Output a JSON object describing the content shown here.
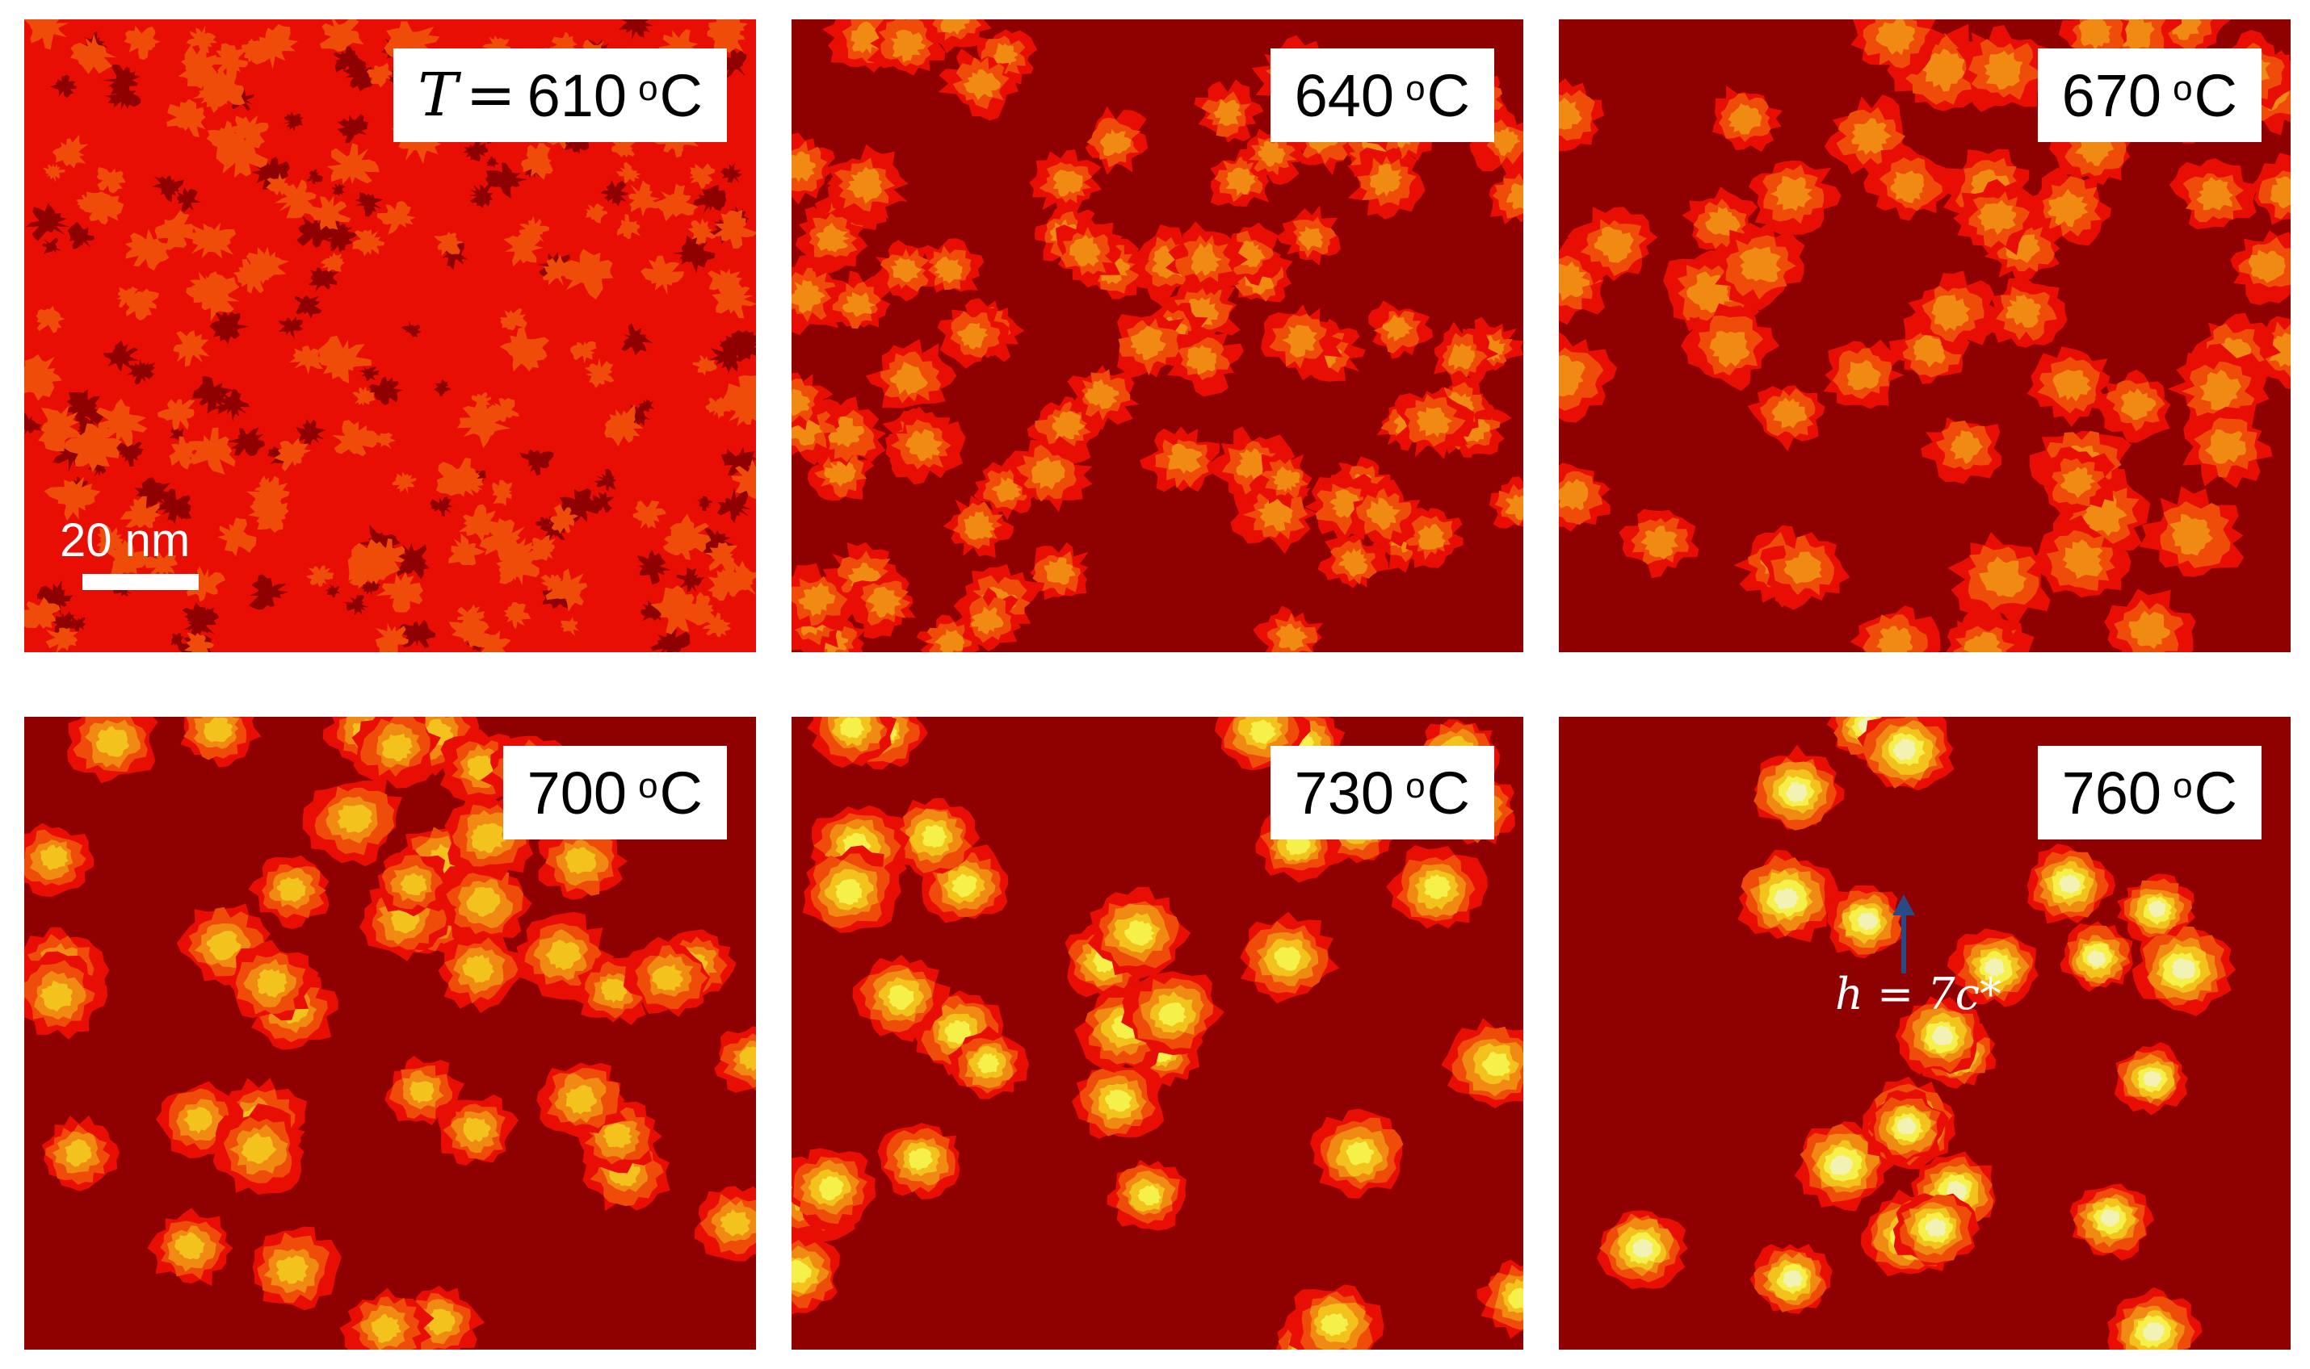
{
  "figure": {
    "panels": [
      {
        "id": "p1",
        "temperature": "610",
        "unit": "oC",
        "prefix_var": "T",
        "prefix_eq": "=",
        "stage": 1
      },
      {
        "id": "p2",
        "temperature": "640",
        "unit": "oC",
        "stage": 2
      },
      {
        "id": "p3",
        "temperature": "670",
        "unit": "oC",
        "stage": 3
      },
      {
        "id": "p4",
        "temperature": "700",
        "unit": "oC",
        "stage": 4
      },
      {
        "id": "p5",
        "temperature": "730",
        "unit": "oC",
        "stage": 5
      },
      {
        "id": "p6",
        "temperature": "760",
        "unit": "oC",
        "stage": 6
      }
    ],
    "scale_bar": {
      "label": "20 nm"
    },
    "annotation": {
      "text": "h = 7c*"
    },
    "colors": {
      "substrate": "#8f0000",
      "layer1": "#e80e04",
      "layer2": "#ee4c08",
      "layer3": "#f08a12",
      "layer4": "#f3c21c",
      "layer5": "#f6f14a",
      "layer6": "#f2f2b4",
      "arrow": "#2a4a86"
    }
  }
}
